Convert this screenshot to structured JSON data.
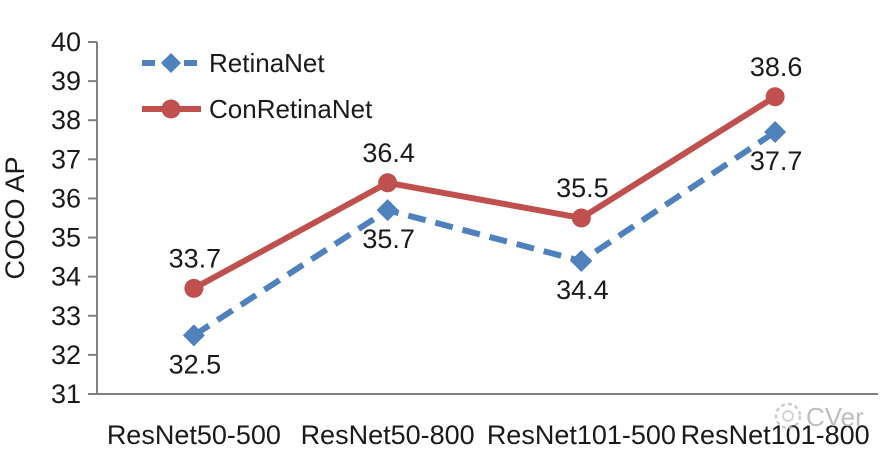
{
  "watermark": {
    "text": "CVer"
  },
  "chart_data": {
    "type": "line",
    "title": "",
    "xlabel": "",
    "ylabel": "COCO AP",
    "categories": [
      "ResNet50-500",
      "ResNet50-800",
      "ResNet101-500",
      "ResNet101-800"
    ],
    "series": [
      {
        "name": "RetinaNet",
        "values": [
          32.5,
          35.7,
          34.4,
          37.7
        ],
        "color": "#4F81BD",
        "line_style": "dashed",
        "marker": "diamond",
        "data_label_position": "below"
      },
      {
        "name": "ConRetinaNet",
        "values": [
          33.7,
          36.4,
          35.5,
          38.6
        ],
        "color": "#C0504D",
        "line_style": "solid",
        "marker": "circle",
        "data_label_position": "above"
      }
    ],
    "ylim": [
      31,
      40
    ],
    "ytick_step": 1,
    "grid": false,
    "legend": {
      "position": "top-left-inside",
      "entries": [
        "RetinaNet",
        "ConRetinaNet"
      ]
    },
    "axis_color": "#808080",
    "label_color": "#1A1A1A",
    "data_labels_shown": true
  }
}
